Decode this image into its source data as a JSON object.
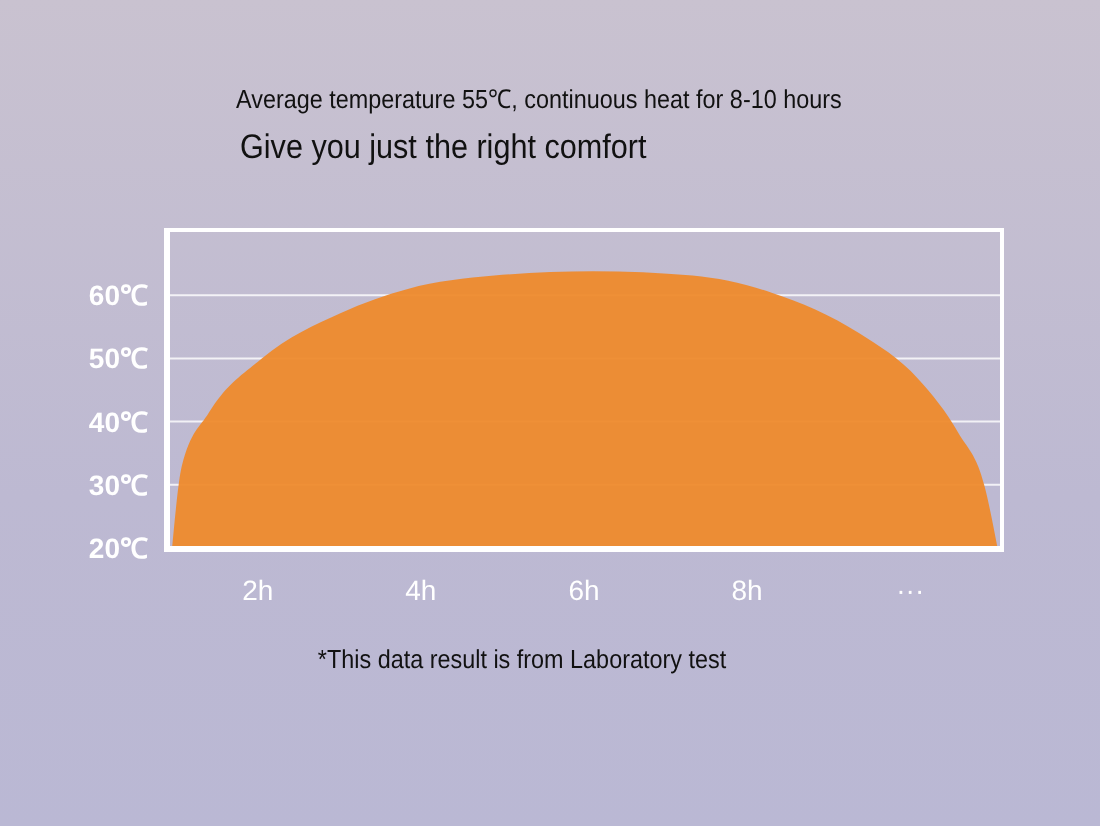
{
  "chart_data": {
    "type": "area",
    "title": "Average temperature 55℃, continuous heat for 8-10 hours",
    "subtitle": "Give you just the right comfort",
    "x": [
      0.95,
      1.07,
      1.4,
      2.05,
      3.02,
      3.84,
      4.9,
      6.11,
      7.33,
      8.3,
      9.37,
      10.1,
      10.59,
      10.91,
      11.07
    ],
    "series": [
      {
        "color": "#ee8a2c",
        "values": [
          20,
          33,
          41.4,
          50,
          57.2,
          61,
          63.1,
          63.8,
          63.1,
          60.4,
          54,
          46.7,
          38.2,
          29.8,
          20
        ]
      }
    ],
    "xlim": [
      0.9,
      11.1
    ],
    "xticks": [
      {
        "value": 2,
        "label": "2h"
      },
      {
        "value": 4,
        "label": "4h"
      },
      {
        "value": 6,
        "label": "6h"
      },
      {
        "value": 8,
        "label": "8h"
      },
      {
        "value": 10,
        "label": "···"
      }
    ],
    "ylim": [
      20,
      70
    ],
    "yticks": [
      {
        "value": 20,
        "label": "20℃"
      },
      {
        "value": 30,
        "label": "30℃"
      },
      {
        "value": 40,
        "label": "40℃"
      },
      {
        "value": 50,
        "label": "50℃"
      },
      {
        "value": 60,
        "label": "60℃"
      }
    ],
    "grid": "y",
    "annotations": [
      "*This data result is from Laboratory test"
    ]
  }
}
